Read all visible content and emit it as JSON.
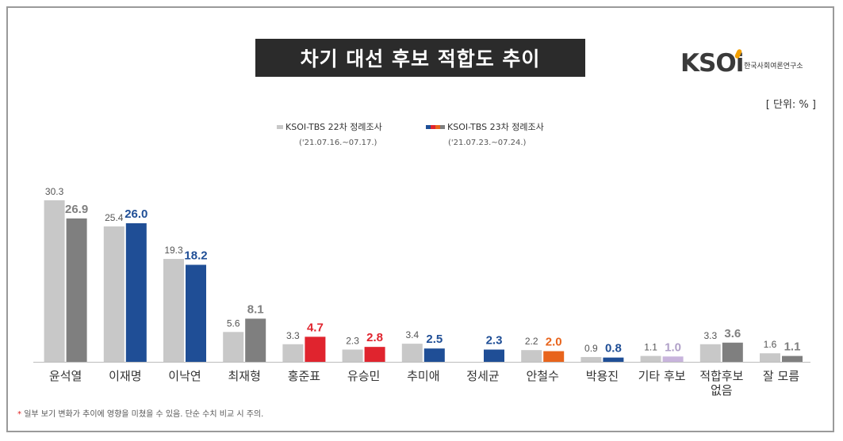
{
  "title": "차기 대선 후보 적합도 추이",
  "logo": {
    "mark": "KSOi",
    "sub": "한국사회여론연구소"
  },
  "unit": "[ 단위: % ]",
  "legend": [
    {
      "name": "KSOI-TBS 22차 정례조사",
      "period": "('21.07.16.~07.17.)"
    },
    {
      "name": "KSOI-TBS 23차 정례조사",
      "period": "('21.07.23.~07.24.)"
    }
  ],
  "note": {
    "star": "*",
    "text": "일부 보기 변화가 추이에 영향을 미쳤을 수 있음. 단순 수치 비교 시 주의."
  },
  "colors": {
    "prev": "#c8c8c8",
    "gray": "#7f7f7f",
    "blue": "#1f4e96",
    "red": "#e0242e",
    "orange": "#e8641c",
    "lavender": "#c8b4dc"
  },
  "chart_data": {
    "type": "bar",
    "title": "차기 대선 후보 적합도 추이",
    "categories": [
      "윤석열",
      "이재명",
      "이낙연",
      "최재형",
      "홍준표",
      "유승민",
      "추미애",
      "정세균",
      "안철수",
      "박용진",
      "기타 후보",
      "적합후보\n없음",
      "잘 모름"
    ],
    "series": [
      {
        "name": "KSOI-TBS 22차 정례조사",
        "values": [
          30.3,
          25.4,
          19.3,
          5.6,
          3.3,
          2.3,
          3.4,
          null,
          2.2,
          0.9,
          1.1,
          3.3,
          1.6
        ]
      },
      {
        "name": "KSOI-TBS 23차 정례조사",
        "values": [
          26.9,
          26.0,
          18.2,
          8.1,
          4.7,
          2.8,
          2.5,
          2.3,
          2.0,
          0.8,
          1.0,
          3.6,
          1.1
        ]
      }
    ],
    "current_colors": [
      "gray",
      "blue",
      "blue",
      "gray",
      "red",
      "red",
      "blue",
      "blue",
      "orange",
      "blue",
      "lavender",
      "gray",
      "gray"
    ],
    "ylim": [
      0,
      32
    ],
    "legend_position": "top-center",
    "grid": false
  }
}
